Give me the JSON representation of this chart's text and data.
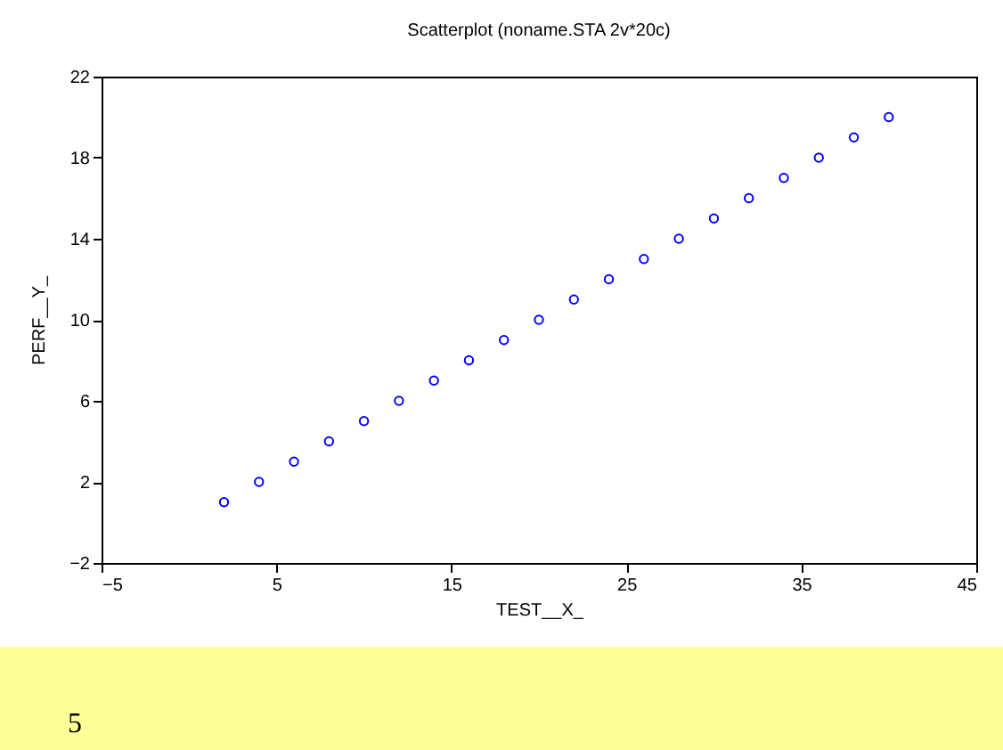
{
  "chart_data": {
    "type": "scatter",
    "title": "Scatterplot (noname.STA 2v*20c)",
    "xlabel": "TEST__X_",
    "ylabel": "PERF__Y_",
    "x": [
      2,
      4,
      6,
      8,
      10,
      12,
      14,
      16,
      18,
      20,
      22,
      24,
      26,
      28,
      30,
      32,
      34,
      36,
      38,
      40
    ],
    "series": [
      {
        "color": "#0000ff",
        "values": [
          1,
          2,
          3,
          4,
          5,
          6,
          7,
          8,
          9,
          10,
          11,
          12,
          13,
          14,
          15,
          16,
          17,
          18,
          19,
          20
        ]
      }
    ],
    "xlim": [
      -5,
      45
    ],
    "xticks": [
      -5,
      5,
      15,
      25,
      35,
      45
    ],
    "ylim": [
      -2,
      22
    ],
    "yticks": [
      -2,
      2,
      6,
      10,
      14,
      18,
      22
    ],
    "marker": "circle",
    "grid": false,
    "annotations": [
      "5"
    ]
  }
}
